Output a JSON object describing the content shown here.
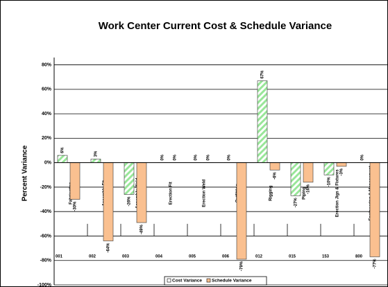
{
  "chart_data": {
    "type": "bar",
    "title": "Work Center Current Cost & Schedule Variance",
    "y_label": "Percent Variance",
    "categories": [
      "001",
      "002",
      "003",
      "004",
      "005",
      "006",
      "012",
      "015",
      "153",
      "800"
    ],
    "category_names": [
      "Fabrication",
      "Assembly Fit",
      "Assembly Weld",
      "Erection Fit",
      "Erection Weld",
      "Outfitting",
      "Rigging",
      "Piping",
      "Erection Jigs & Fixtures",
      "Engineering & Management"
    ],
    "series": [
      {
        "name": "Cost Variance",
        "color": "#99e699",
        "values": [
          6,
          3,
          -26,
          0,
          0,
          0,
          67,
          -27,
          -10,
          0
        ],
        "value_labels": [
          "6%",
          "3%",
          "-26%",
          "0%",
          "0%",
          "0%",
          "67%",
          "-27%",
          "-10%",
          "0%"
        ]
      },
      {
        "name": "Schedule Variance",
        "color": "#fac090",
        "values": [
          -30,
          -64,
          -49,
          0,
          0,
          -79,
          -6,
          -16,
          -3,
          -77
        ],
        "value_labels": [
          "-30%",
          "-64%",
          "-49%",
          "0%",
          "0%",
          "-79%",
          "-6%",
          "-16%",
          "-3%",
          "-77%"
        ]
      }
    ],
    "ylim": [
      -100,
      86
    ],
    "yticks": [
      {
        "value": -100,
        "label": "-100%"
      },
      {
        "value": -80,
        "label": "-80%"
      },
      {
        "value": -60,
        "label": "-60%"
      },
      {
        "value": -40,
        "label": "-40%"
      },
      {
        "value": -20,
        "label": "-20%"
      },
      {
        "value": 0,
        "label": "0%"
      },
      {
        "value": 20,
        "label": "20%"
      },
      {
        "value": 40,
        "label": "40%"
      },
      {
        "value": 60,
        "label": "60%"
      },
      {
        "value": 80,
        "label": "80%"
      }
    ],
    "grid": true,
    "legend": "bottom"
  }
}
